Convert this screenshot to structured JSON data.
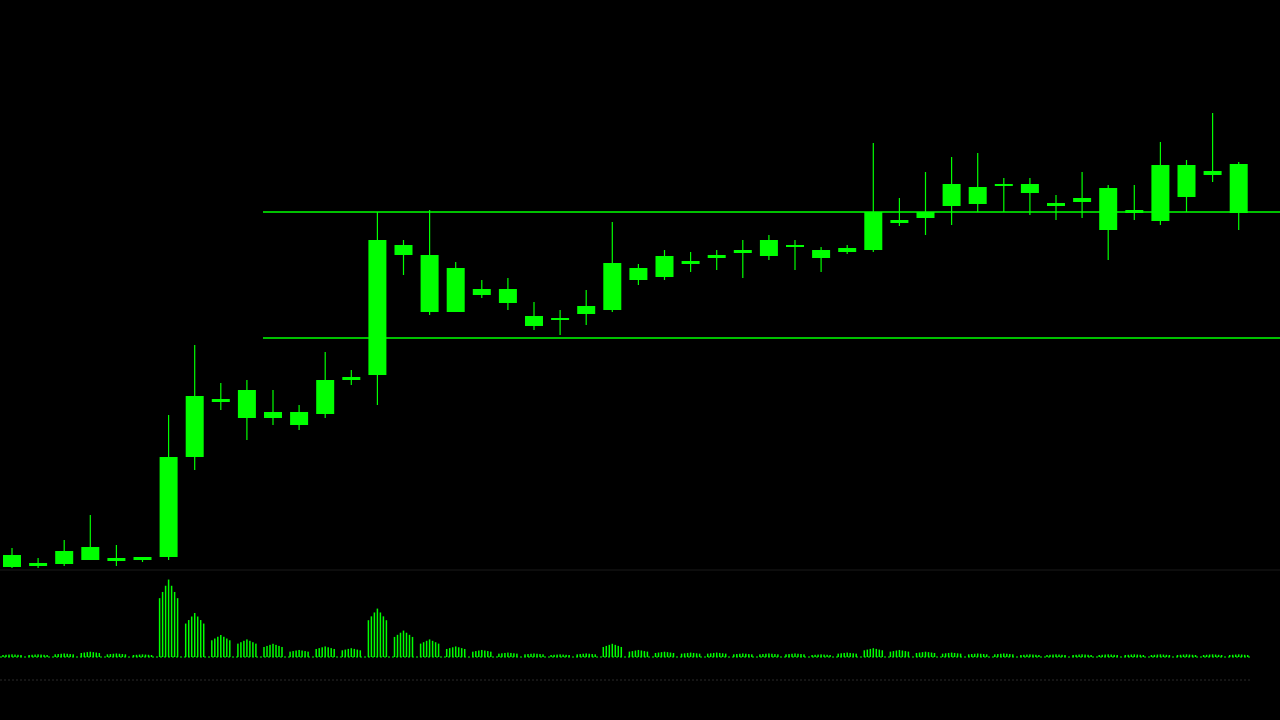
{
  "chart_data": {
    "type": "candlestick",
    "color": "#00ff00",
    "open": [
      3,
      4,
      6,
      10,
      9,
      10,
      13,
      113,
      168,
      152,
      152,
      145,
      156,
      190,
      195,
      315,
      258,
      258,
      275,
      267,
      244,
      250,
      256,
      260,
      290,
      293,
      306,
      312,
      317,
      314,
      323,
      312,
      318,
      320,
      347,
      352,
      364,
      366,
      384,
      377,
      364,
      368,
      340,
      357,
      349,
      373,
      395,
      357
    ],
    "high": [
      22,
      12,
      30,
      55,
      25,
      13,
      155,
      225,
      187,
      190,
      180,
      165,
      218,
      200,
      358,
      330,
      360,
      308,
      290,
      292,
      268,
      260,
      280,
      348,
      306,
      320,
      318,
      320,
      330,
      335,
      330,
      323,
      325,
      427,
      372,
      398,
      413,
      417,
      392,
      392,
      375,
      398,
      385,
      385,
      428,
      410,
      457,
      408
    ],
    "low": [
      2,
      2,
      4,
      10,
      4,
      8,
      10,
      100,
      160,
      130,
      145,
      140,
      152,
      185,
      165,
      295,
      255,
      262,
      272,
      260,
      240,
      235,
      245,
      258,
      285,
      290,
      298,
      300,
      292,
      310,
      300,
      298,
      316,
      318,
      344,
      335,
      345,
      358,
      358,
      355,
      350,
      352,
      310,
      350,
      345,
      358,
      388,
      340
    ],
    "close": [
      15,
      7,
      19,
      23,
      12,
      13,
      113,
      174,
      171,
      180,
      158,
      158,
      190,
      193,
      330,
      325,
      315,
      302,
      281,
      281,
      254,
      252,
      264,
      307,
      302,
      314,
      309,
      315,
      320,
      330,
      325,
      320,
      322,
      358,
      350,
      358,
      386,
      383,
      386,
      386,
      367,
      372,
      382,
      360,
      405,
      405,
      399,
      406
    ],
    "volume": [
      3,
      3,
      4,
      6,
      4,
      3,
      88,
      50,
      25,
      20,
      15,
      8,
      12,
      10,
      55,
      30,
      20,
      12,
      8,
      5,
      4,
      3,
      4,
      15,
      8,
      6,
      5,
      5,
      4,
      4,
      4,
      3,
      5,
      10,
      8,
      6,
      5,
      4,
      4,
      3,
      3,
      3,
      3,
      3,
      3,
      3,
      3,
      3
    ],
    "levels": [
      358,
      232
    ],
    "ylim": [
      0,
      570
    ],
    "volume_ylim": [
      0,
      100
    ]
  }
}
